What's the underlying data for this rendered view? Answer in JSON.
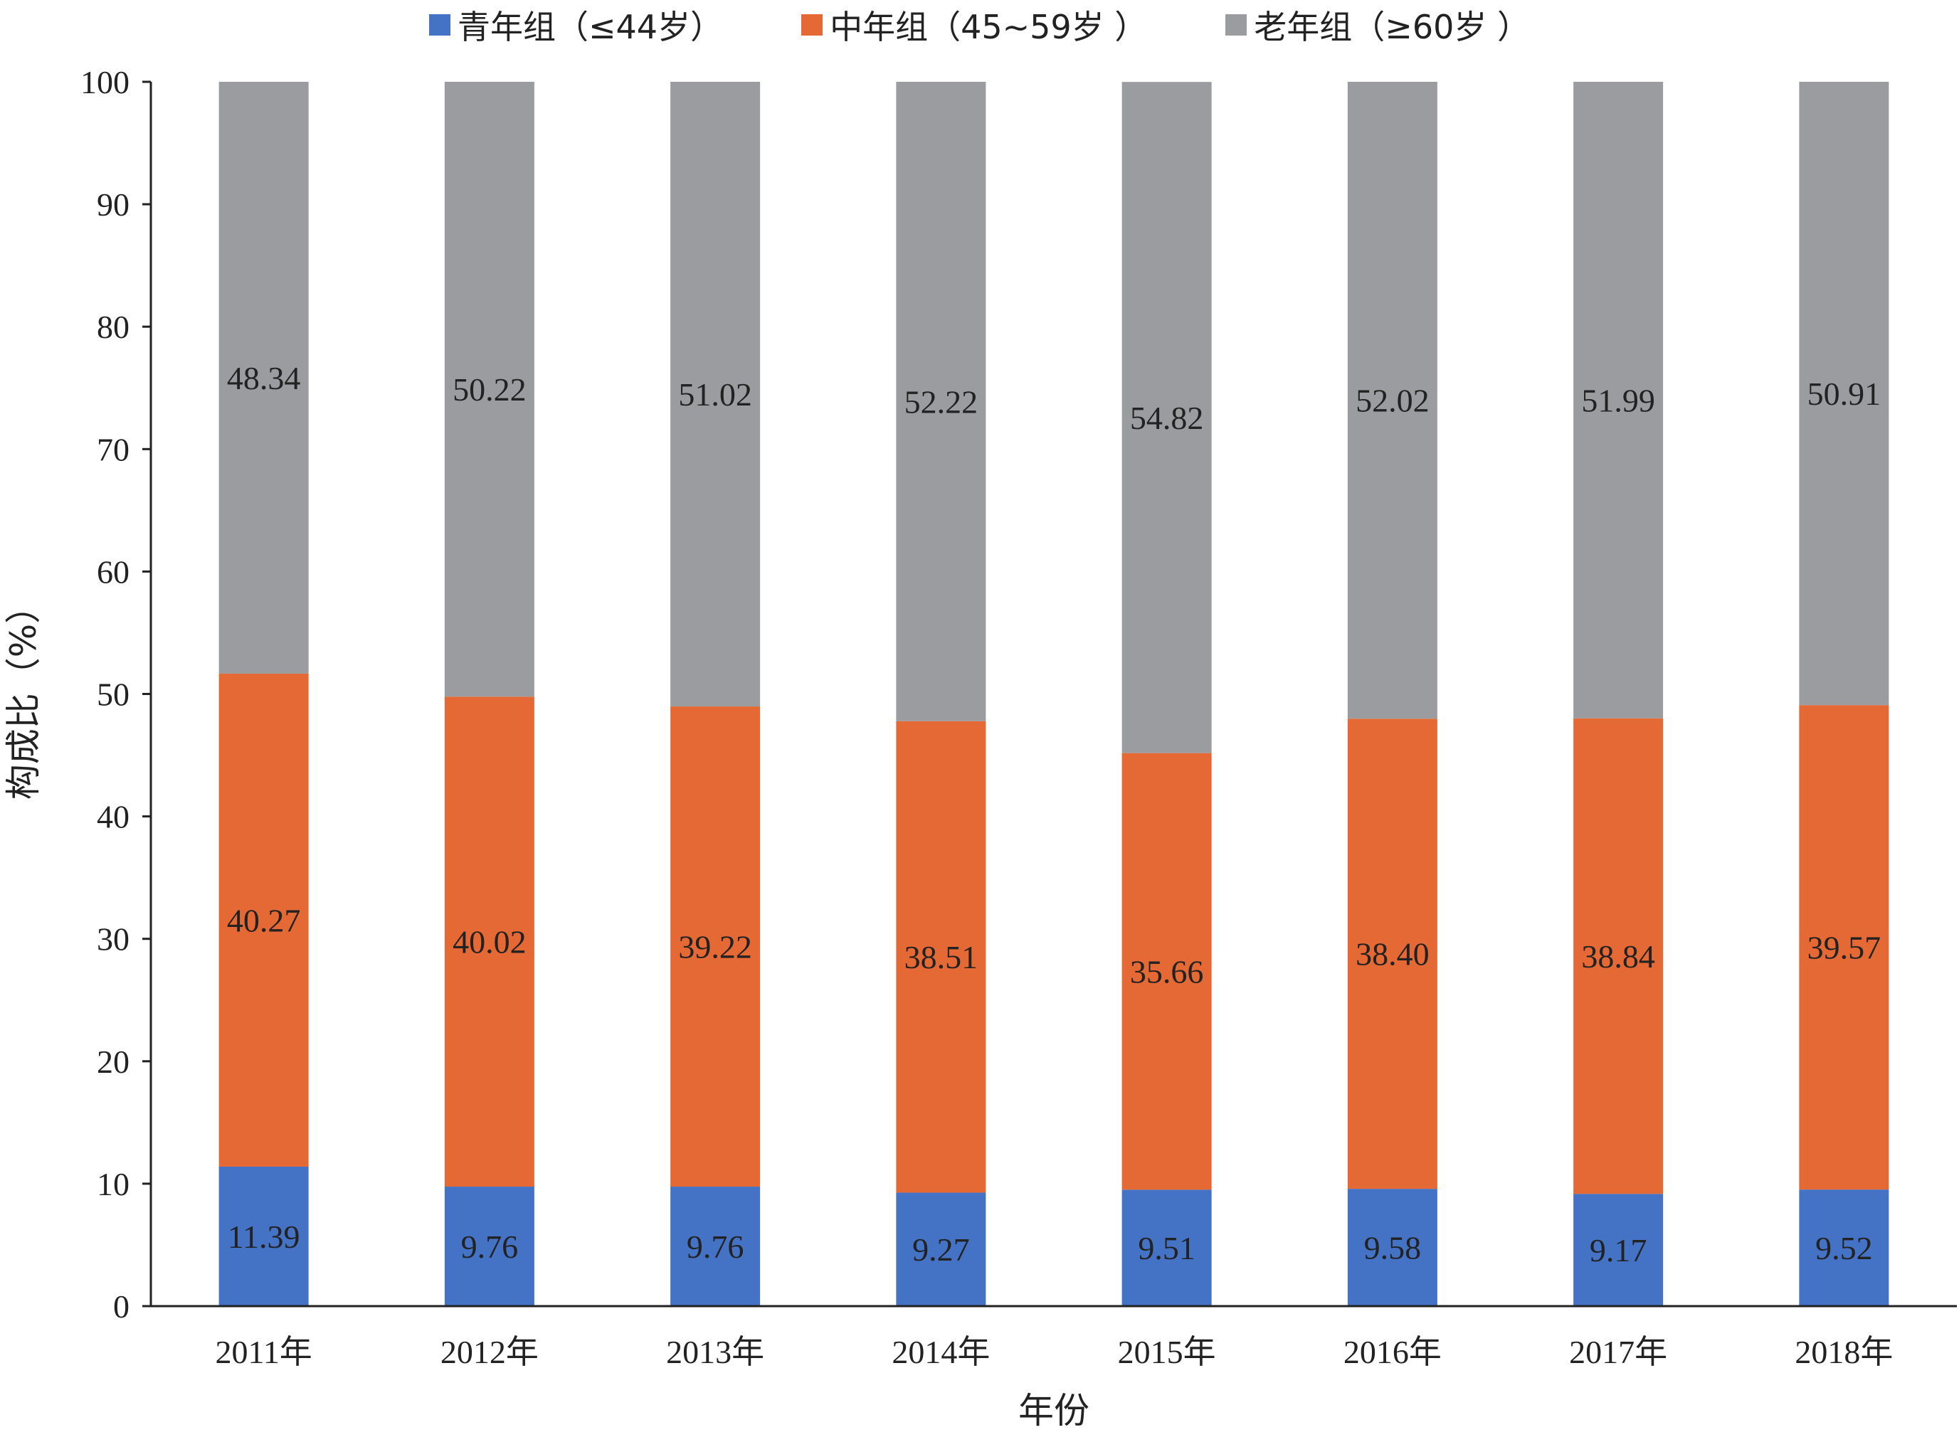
{
  "chart_data": {
    "type": "bar",
    "stacked": true,
    "categories": [
      "2011年",
      "2012年",
      "2013年",
      "2014年",
      "2015年",
      "2016年",
      "2017年",
      "2018年"
    ],
    "series": [
      {
        "name": "青年组（≤44岁）",
        "color": "#4472C4",
        "values": [
          11.39,
          9.76,
          9.76,
          9.27,
          9.51,
          9.58,
          9.17,
          9.52
        ],
        "labels": [
          "11.39",
          "9.76",
          "9.76",
          "9.27",
          "9.51",
          "9.58",
          "9.17",
          "9.52"
        ]
      },
      {
        "name": "中年组（45~59岁 ）",
        "color": "#E46935",
        "values": [
          40.27,
          40.02,
          39.22,
          38.51,
          35.66,
          38.4,
          38.84,
          39.57
        ],
        "labels": [
          "40.27",
          "40.02",
          "39.22",
          "38.51",
          "35.66",
          "38.40",
          "38.84",
          "39.57"
        ]
      },
      {
        "name": "老年组（≥60岁 ）",
        "color": "#9B9C9F",
        "values": [
          48.34,
          50.22,
          51.02,
          52.22,
          54.82,
          52.02,
          51.99,
          50.91
        ],
        "labels": [
          "48.34",
          "50.22",
          "51.02",
          "52.22",
          "54.82",
          "52.02",
          "51.99",
          "50.91"
        ]
      }
    ],
    "xlabel": "年份",
    "ylabel": "构成比（%）",
    "ylim": [
      0,
      100
    ],
    "yticks": [
      0,
      10,
      20,
      30,
      40,
      50,
      60,
      70,
      80,
      90,
      100
    ],
    "grid": false,
    "legend_position": "top"
  }
}
